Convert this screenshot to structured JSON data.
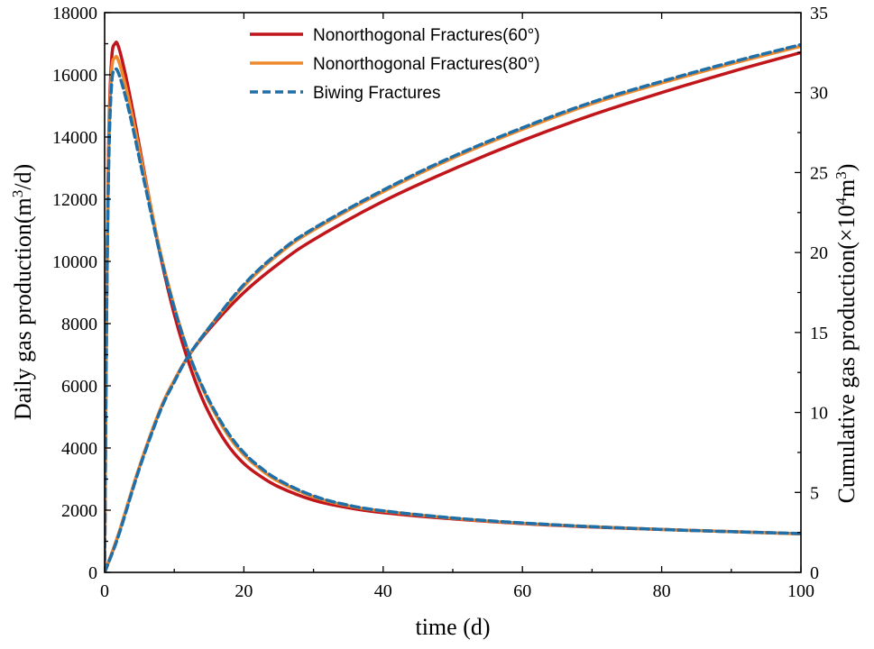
{
  "chart_data": {
    "type": "line",
    "xlabel": "time (d)",
    "ylabel_left": {
      "before": "Daily gas production(m",
      "sup": "3",
      "after": "/d)"
    },
    "ylabel_right": {
      "before": "Cumulative gas production(×10",
      "sup1": "4",
      "mid": "m",
      "sup2": "3",
      "after": ")"
    },
    "xlim": [
      0,
      100
    ],
    "ylim_left": [
      0,
      18000
    ],
    "ylim_right": [
      0,
      35
    ],
    "xticks": [
      "0",
      "20",
      "40",
      "60",
      "80",
      "100"
    ],
    "yticks_left": [
      "0",
      "2000",
      "4000",
      "6000",
      "8000",
      "10000",
      "12000",
      "14000",
      "16000",
      "18000"
    ],
    "yticks_right": [
      "0",
      "5",
      "10",
      "15",
      "20",
      "25",
      "30",
      "35"
    ],
    "legend_position": "top-center",
    "series": [
      {
        "name": "Nonorthogonal Fractures(60°)",
        "color": "#c0151b",
        "style": "solid",
        "daily": {
          "x": [
            0,
            0.3,
            0.6,
            1,
            1.5,
            2,
            3,
            4,
            5,
            6,
            8,
            10,
            12,
            14,
            16,
            18,
            20,
            22,
            25,
            30,
            35,
            40,
            50,
            60,
            70,
            80,
            90,
            100
          ],
          "y": [
            0,
            9000,
            14000,
            16500,
            17000,
            16900,
            16000,
            14900,
            13700,
            12500,
            10200,
            8300,
            6800,
            5600,
            4700,
            4000,
            3500,
            3150,
            2750,
            2320,
            2080,
            1920,
            1720,
            1570,
            1460,
            1380,
            1310,
            1240
          ]
        },
        "cumulative": {
          "x": [
            0,
            2,
            5,
            8,
            10,
            12,
            15,
            20,
            25,
            30,
            40,
            50,
            60,
            70,
            80,
            90,
            100
          ],
          "y": [
            0,
            2.4,
            6.6,
            10.2,
            12.0,
            13.5,
            15.2,
            17.5,
            19.3,
            20.8,
            23.2,
            25.2,
            27.0,
            28.6,
            30.0,
            31.3,
            32.5
          ]
        }
      },
      {
        "name": "Nonorthogonal Fractures(80°)",
        "color": "#ef8a2c",
        "style": "solid",
        "daily": {
          "x": [
            0,
            0.3,
            0.6,
            1,
            1.5,
            2,
            3,
            4,
            5,
            6,
            8,
            10,
            12,
            14,
            16,
            18,
            20,
            22,
            25,
            30,
            35,
            40,
            50,
            60,
            70,
            80,
            90,
            100
          ],
          "y": [
            0,
            8800,
            13600,
            16100,
            16550,
            16450,
            15650,
            14650,
            13550,
            12450,
            10300,
            8550,
            7100,
            5950,
            5050,
            4320,
            3780,
            3380,
            2920,
            2430,
            2140,
            1970,
            1740,
            1580,
            1470,
            1380,
            1310,
            1240
          ]
        },
        "cumulative": {
          "x": [
            0,
            2,
            5,
            8,
            10,
            12,
            15,
            20,
            25,
            30,
            40,
            50,
            60,
            70,
            80,
            90,
            100
          ],
          "y": [
            0,
            2.4,
            6.6,
            10.2,
            12.0,
            13.5,
            15.3,
            17.9,
            19.9,
            21.4,
            23.8,
            25.9,
            27.7,
            29.3,
            30.6,
            31.8,
            32.9
          ]
        }
      },
      {
        "name": "Biwing Fractures",
        "color": "#1f6fa8",
        "style": "dashed",
        "daily": {
          "x": [
            0,
            0.3,
            0.6,
            1,
            1.5,
            2,
            3,
            4,
            5,
            6,
            8,
            10,
            12,
            14,
            16,
            18,
            20,
            22,
            25,
            30,
            35,
            40,
            50,
            60,
            70,
            80,
            90,
            100
          ],
          "y": [
            0,
            8500,
            13200,
            15700,
            16150,
            16050,
            15300,
            14350,
            13300,
            12250,
            10200,
            8500,
            7100,
            6000,
            5120,
            4400,
            3850,
            3440,
            2970,
            2460,
            2160,
            1980,
            1750,
            1590,
            1470,
            1380,
            1310,
            1250
          ]
        },
        "cumulative": {
          "x": [
            0,
            2,
            5,
            8,
            10,
            12,
            15,
            20,
            25,
            30,
            40,
            50,
            60,
            70,
            80,
            90,
            100
          ],
          "y": [
            0,
            2.3,
            6.5,
            10.1,
            11.9,
            13.5,
            15.3,
            18.0,
            20.0,
            21.5,
            23.9,
            26.0,
            27.8,
            29.4,
            30.7,
            31.9,
            33.0
          ]
        }
      }
    ]
  }
}
